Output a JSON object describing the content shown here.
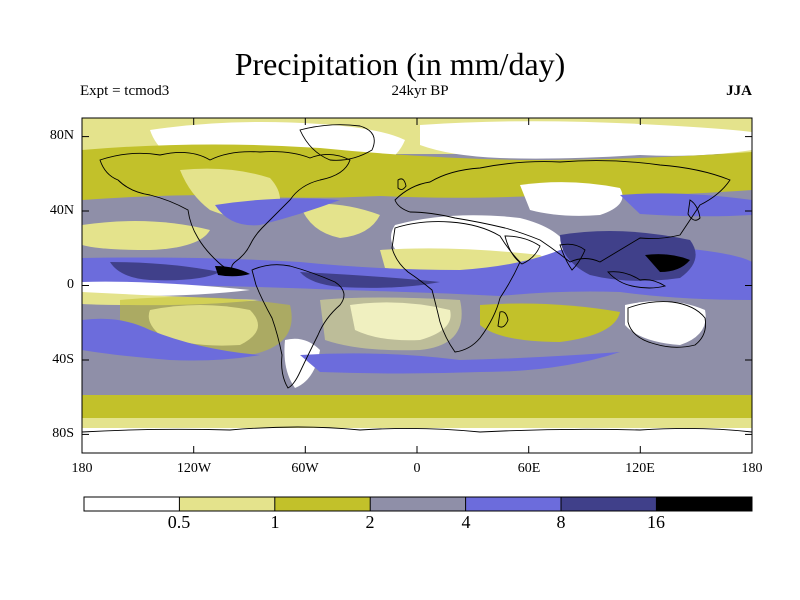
{
  "title": "Precipitation (in mm/day)",
  "experiment_label": "Expt = tcmod3",
  "period_label": "24kyr BP",
  "season_label": "JJA",
  "axes": {
    "lat_labels": [
      "80N",
      "40N",
      "0",
      "40S",
      "80S"
    ],
    "lon_labels": [
      "180",
      "120W",
      "60W",
      "0",
      "60E",
      "120E",
      "180"
    ]
  },
  "colorbar": {
    "labels": [
      "0.5",
      "1",
      "2",
      "4",
      "8",
      "16"
    ],
    "colors": [
      "#ffffff",
      "#e4e38c",
      "#c2c12a",
      "#8f8fa8",
      "#6c6cdc",
      "#40408a",
      "#000000"
    ]
  },
  "chart_data": {
    "type": "heatmap",
    "title": "Precipitation (in mm/day)",
    "variable": "Precipitation",
    "units": "mm/day",
    "experiment": "tcmod3",
    "period": "24kyr BP",
    "season": "JJA",
    "lat_range": [
      -90,
      90
    ],
    "lon_range": [
      -180,
      180
    ],
    "levels": [
      0.5,
      1,
      2,
      4,
      8,
      16
    ]
  }
}
